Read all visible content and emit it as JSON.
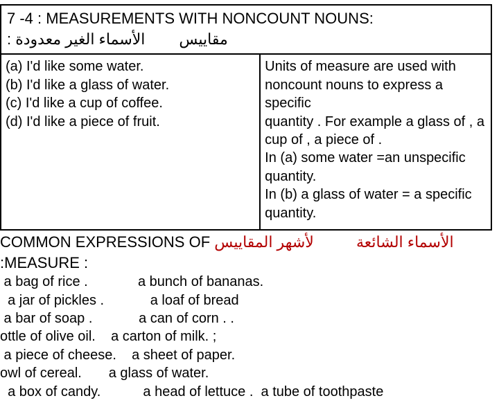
{
  "header": {
    "title": "7 -4 : MEASUREMENTS WITH NONCOUNT NOUNS:",
    "arabic_phrase": "الأسماء الغير معدودة :",
    "arabic_measure": "مقاييس"
  },
  "examples": {
    "a": "(a) I'd like some water.",
    "b": "(b) I'd like a glass of water.",
    "c": "(c) I'd like a cup of coffee.",
    "d": "(d) I'd like a piece of fruit."
  },
  "explanation": {
    "l1": "Units of measure are used with",
    "l2": "noncount nouns to express a specific",
    "l3": "quantity . For example a glass of , a",
    "l4": "cup of , a piece of .",
    "l5": "In (a) some water =an unspecific",
    "l6": "quantity.",
    "l7": "In (b) a glass of water = a specific",
    "l8": "quantity."
  },
  "common": {
    "prefix": "COMMON EXPRESSIONS OF ",
    "arabic1": "لأشهر المقاييس",
    "arabic2": "الأسماء الشائعة",
    "suffix": " :MEASURE :"
  },
  "list": {
    "l1": " a bag of rice .             a bunch of bananas.",
    "l2": "  a jar of pickles .            a loaf of bread",
    "l3": " a bar of soap .            a can of corn . .",
    "l4": "ottle of olive oil.    a carton of milk. ;",
    "l5": " a piece of cheese.    a sheet of paper.",
    "l6": "owl of cereal.       a glass of water.",
    "l7": "  a box of candy.           a head of lettuce .  a tube of toothpaste"
  },
  "colors": {
    "highlight": "#b30000",
    "text": "#000000",
    "border": "#000000",
    "background": "#ffffff"
  }
}
